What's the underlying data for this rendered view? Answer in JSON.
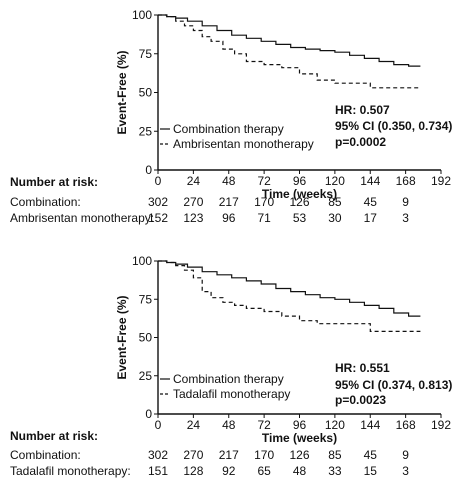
{
  "chart_data": [
    {
      "type": "line",
      "xlabel": "Time (weeks)",
      "ylabel": "Event-Free (%)",
      "xlim": [
        0,
        192
      ],
      "ylim": [
        0,
        100
      ],
      "xticks": [
        "0",
        "24",
        "48",
        "72",
        "96",
        "120",
        "144",
        "168",
        "192"
      ],
      "yticks": [
        "0",
        "25",
        "50",
        "75",
        "100"
      ],
      "series": [
        {
          "name": "Combination therapy",
          "style": "solid",
          "x": [
            0,
            6,
            12,
            20,
            30,
            40,
            50,
            60,
            70,
            80,
            90,
            100,
            110,
            120,
            130,
            140,
            150,
            160,
            170,
            178
          ],
          "y": [
            100,
            99,
            98,
            96,
            93,
            90,
            87,
            85,
            83,
            81,
            79,
            78,
            77,
            76,
            74,
            72,
            70,
            68,
            67,
            67
          ]
        },
        {
          "name": "Ambrisentan monotherapy",
          "style": "dashed",
          "x": [
            0,
            6,
            12,
            18,
            24,
            30,
            36,
            44,
            52,
            60,
            72,
            84,
            96,
            108,
            120,
            132,
            144,
            156,
            168,
            178
          ],
          "y": [
            100,
            99,
            96,
            93,
            90,
            86,
            83,
            78,
            75,
            70,
            68,
            66,
            62,
            58,
            56,
            56,
            53,
            53,
            53,
            53
          ]
        }
      ],
      "annotations": [
        "HR: 0.507",
        "95% CI (0.350, 0.734)",
        "p=0.0002"
      ],
      "risk_table": {
        "title": "Number at risk:",
        "rows": [
          {
            "label": "Combination:",
            "values": [
              "302",
              "270",
              "217",
              "170",
              "126",
              "85",
              "45",
              "9"
            ]
          },
          {
            "label": "Ambrisentan monotherapy:",
            "values": [
              "152",
              "123",
              "96",
              "71",
              "53",
              "30",
              "17",
              "3"
            ]
          }
        ]
      }
    },
    {
      "type": "line",
      "xlabel": "Time (weeks)",
      "ylabel": "Event-Free (%)",
      "xlim": [
        0,
        192
      ],
      "ylim": [
        0,
        100
      ],
      "xticks": [
        "0",
        "24",
        "48",
        "72",
        "96",
        "120",
        "144",
        "168",
        "192"
      ],
      "yticks": [
        "0",
        "25",
        "50",
        "75",
        "100"
      ],
      "series": [
        {
          "name": "Combination therapy",
          "style": "solid",
          "x": [
            0,
            6,
            12,
            20,
            30,
            40,
            50,
            60,
            70,
            80,
            90,
            100,
            110,
            120,
            130,
            140,
            150,
            160,
            170,
            178
          ],
          "y": [
            100,
            99,
            98,
            96,
            93,
            91,
            89,
            87,
            85,
            82,
            80,
            78,
            76,
            75,
            73,
            71,
            69,
            66,
            64,
            64
          ]
        },
        {
          "name": "Tadalafil monotherapy",
          "style": "dashed",
          "x": [
            0,
            6,
            12,
            18,
            24,
            30,
            36,
            44,
            52,
            60,
            72,
            84,
            96,
            108,
            120,
            132,
            144,
            156,
            168,
            178
          ],
          "y": [
            100,
            99,
            97,
            94,
            89,
            80,
            76,
            73,
            71,
            69,
            67,
            64,
            61,
            59,
            59,
            59,
            54,
            54,
            54,
            54
          ]
        }
      ],
      "annotations": [
        "HR: 0.551",
        "95% CI (0.374, 0.813)",
        "p=0.0023"
      ],
      "risk_table": {
        "title": "Number at risk:",
        "rows": [
          {
            "label": "Combination:",
            "values": [
              "302",
              "270",
              "217",
              "170",
              "126",
              "85",
              "45",
              "9"
            ]
          },
          {
            "label": "Tadalafil monotherapy:",
            "values": [
              "151",
              "128",
              "92",
              "65",
              "48",
              "33",
              "15",
              "3"
            ]
          }
        ]
      }
    }
  ]
}
